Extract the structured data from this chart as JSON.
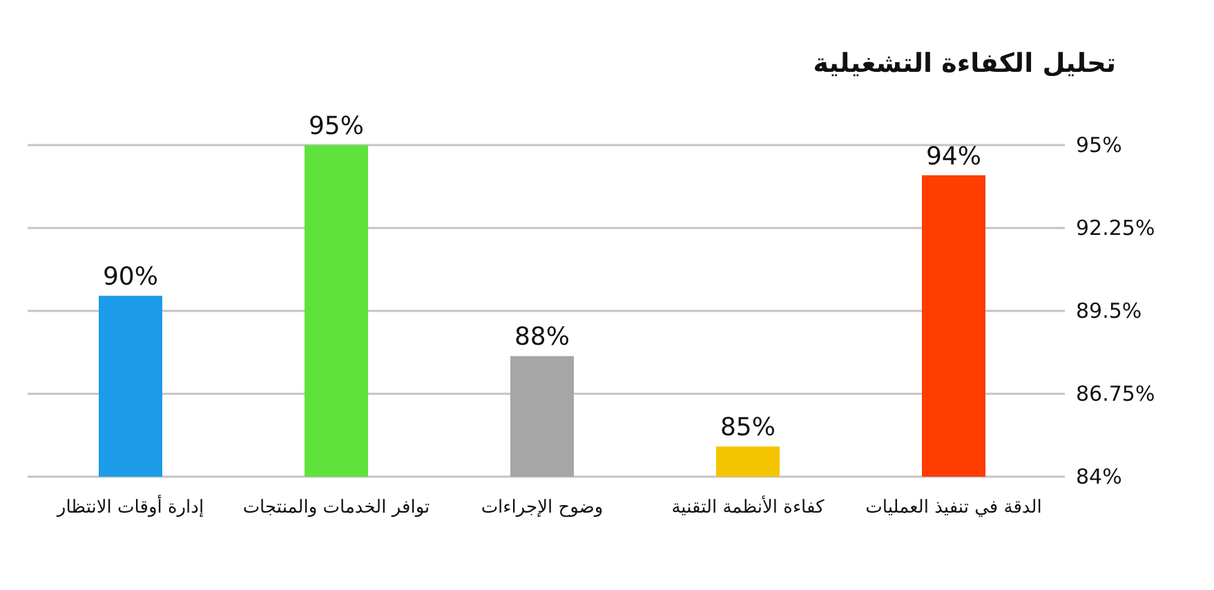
{
  "chart_data": {
    "type": "bar",
    "title": "تحليل الكفاءة التشغيلية",
    "categories": [
      "إدارة أوقات الانتظار",
      "توافر الخدمات والمنتجات",
      "وضوح الإجراءات",
      "كفاءة الأنظمة التقنية",
      "الدقة في تنفيذ العمليات"
    ],
    "values": [
      90,
      95,
      88,
      85,
      94
    ],
    "colors": [
      "#1b9be8",
      "#5fe23c",
      "#a6a6a6",
      "#f5c400",
      "#ff3d00"
    ],
    "value_labels": [
      "90%",
      "95%",
      "88%",
      "85%",
      "94%"
    ],
    "ylim": [
      84,
      95
    ],
    "yticks": [
      {
        "value": 84,
        "label": "84%"
      },
      {
        "value": 86.75,
        "label": "86.75%"
      },
      {
        "value": 89.5,
        "label": "89.5%"
      },
      {
        "value": 92.25,
        "label": "92.25%"
      },
      {
        "value": 95,
        "label": "95%"
      }
    ],
    "grid": "y"
  }
}
